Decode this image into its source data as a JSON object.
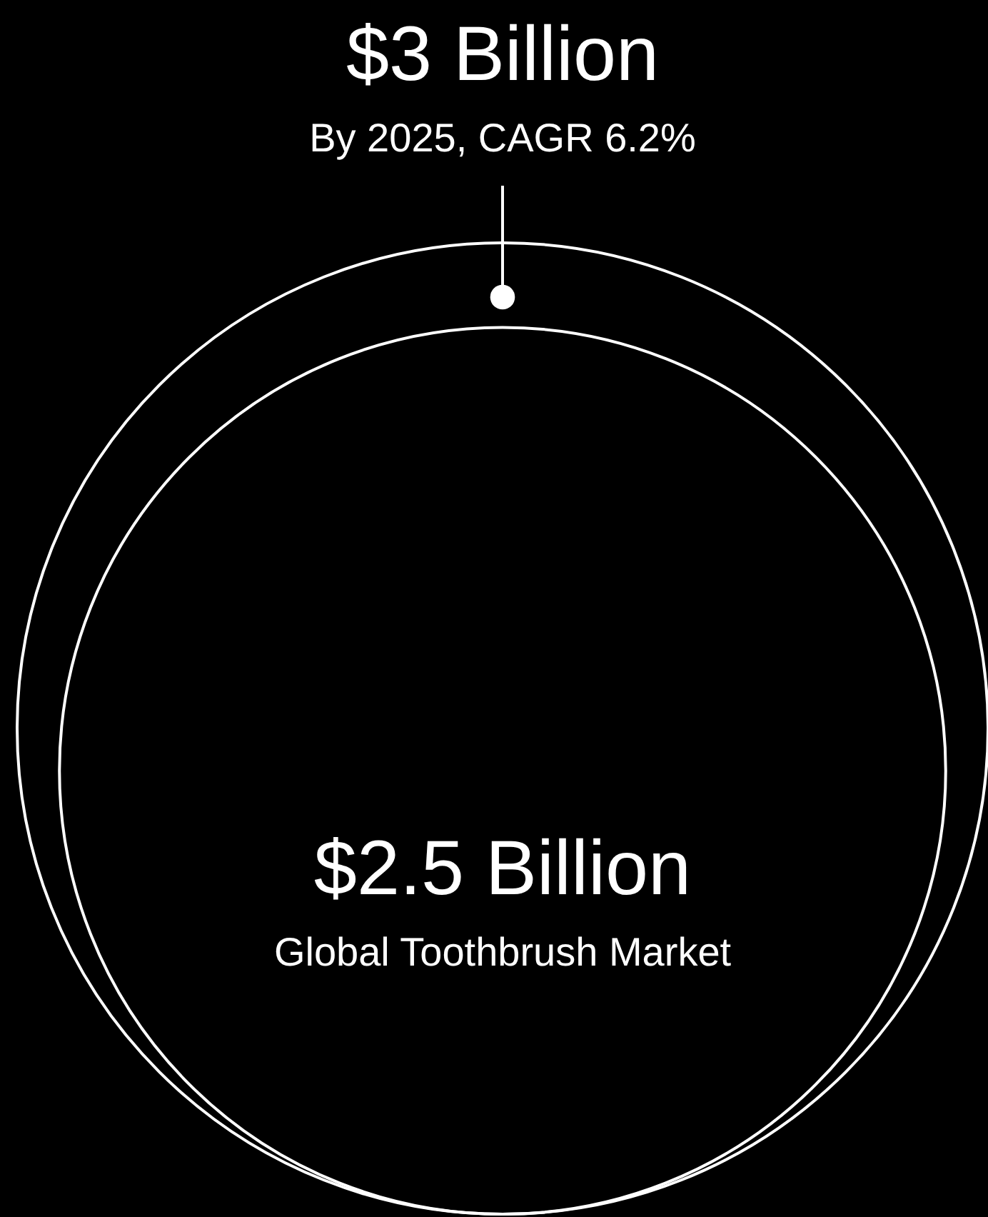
{
  "chart_data": {
    "type": "other",
    "categories": [
      "By 2025, CAGR 6.2%",
      "Global Toothbrush Market"
    ],
    "values": [
      3,
      2.5
    ],
    "value_labels": [
      "$3 Billion",
      "$2.5 Billion"
    ],
    "colors": [
      "#ffffff",
      "#ffffff"
    ]
  }
}
